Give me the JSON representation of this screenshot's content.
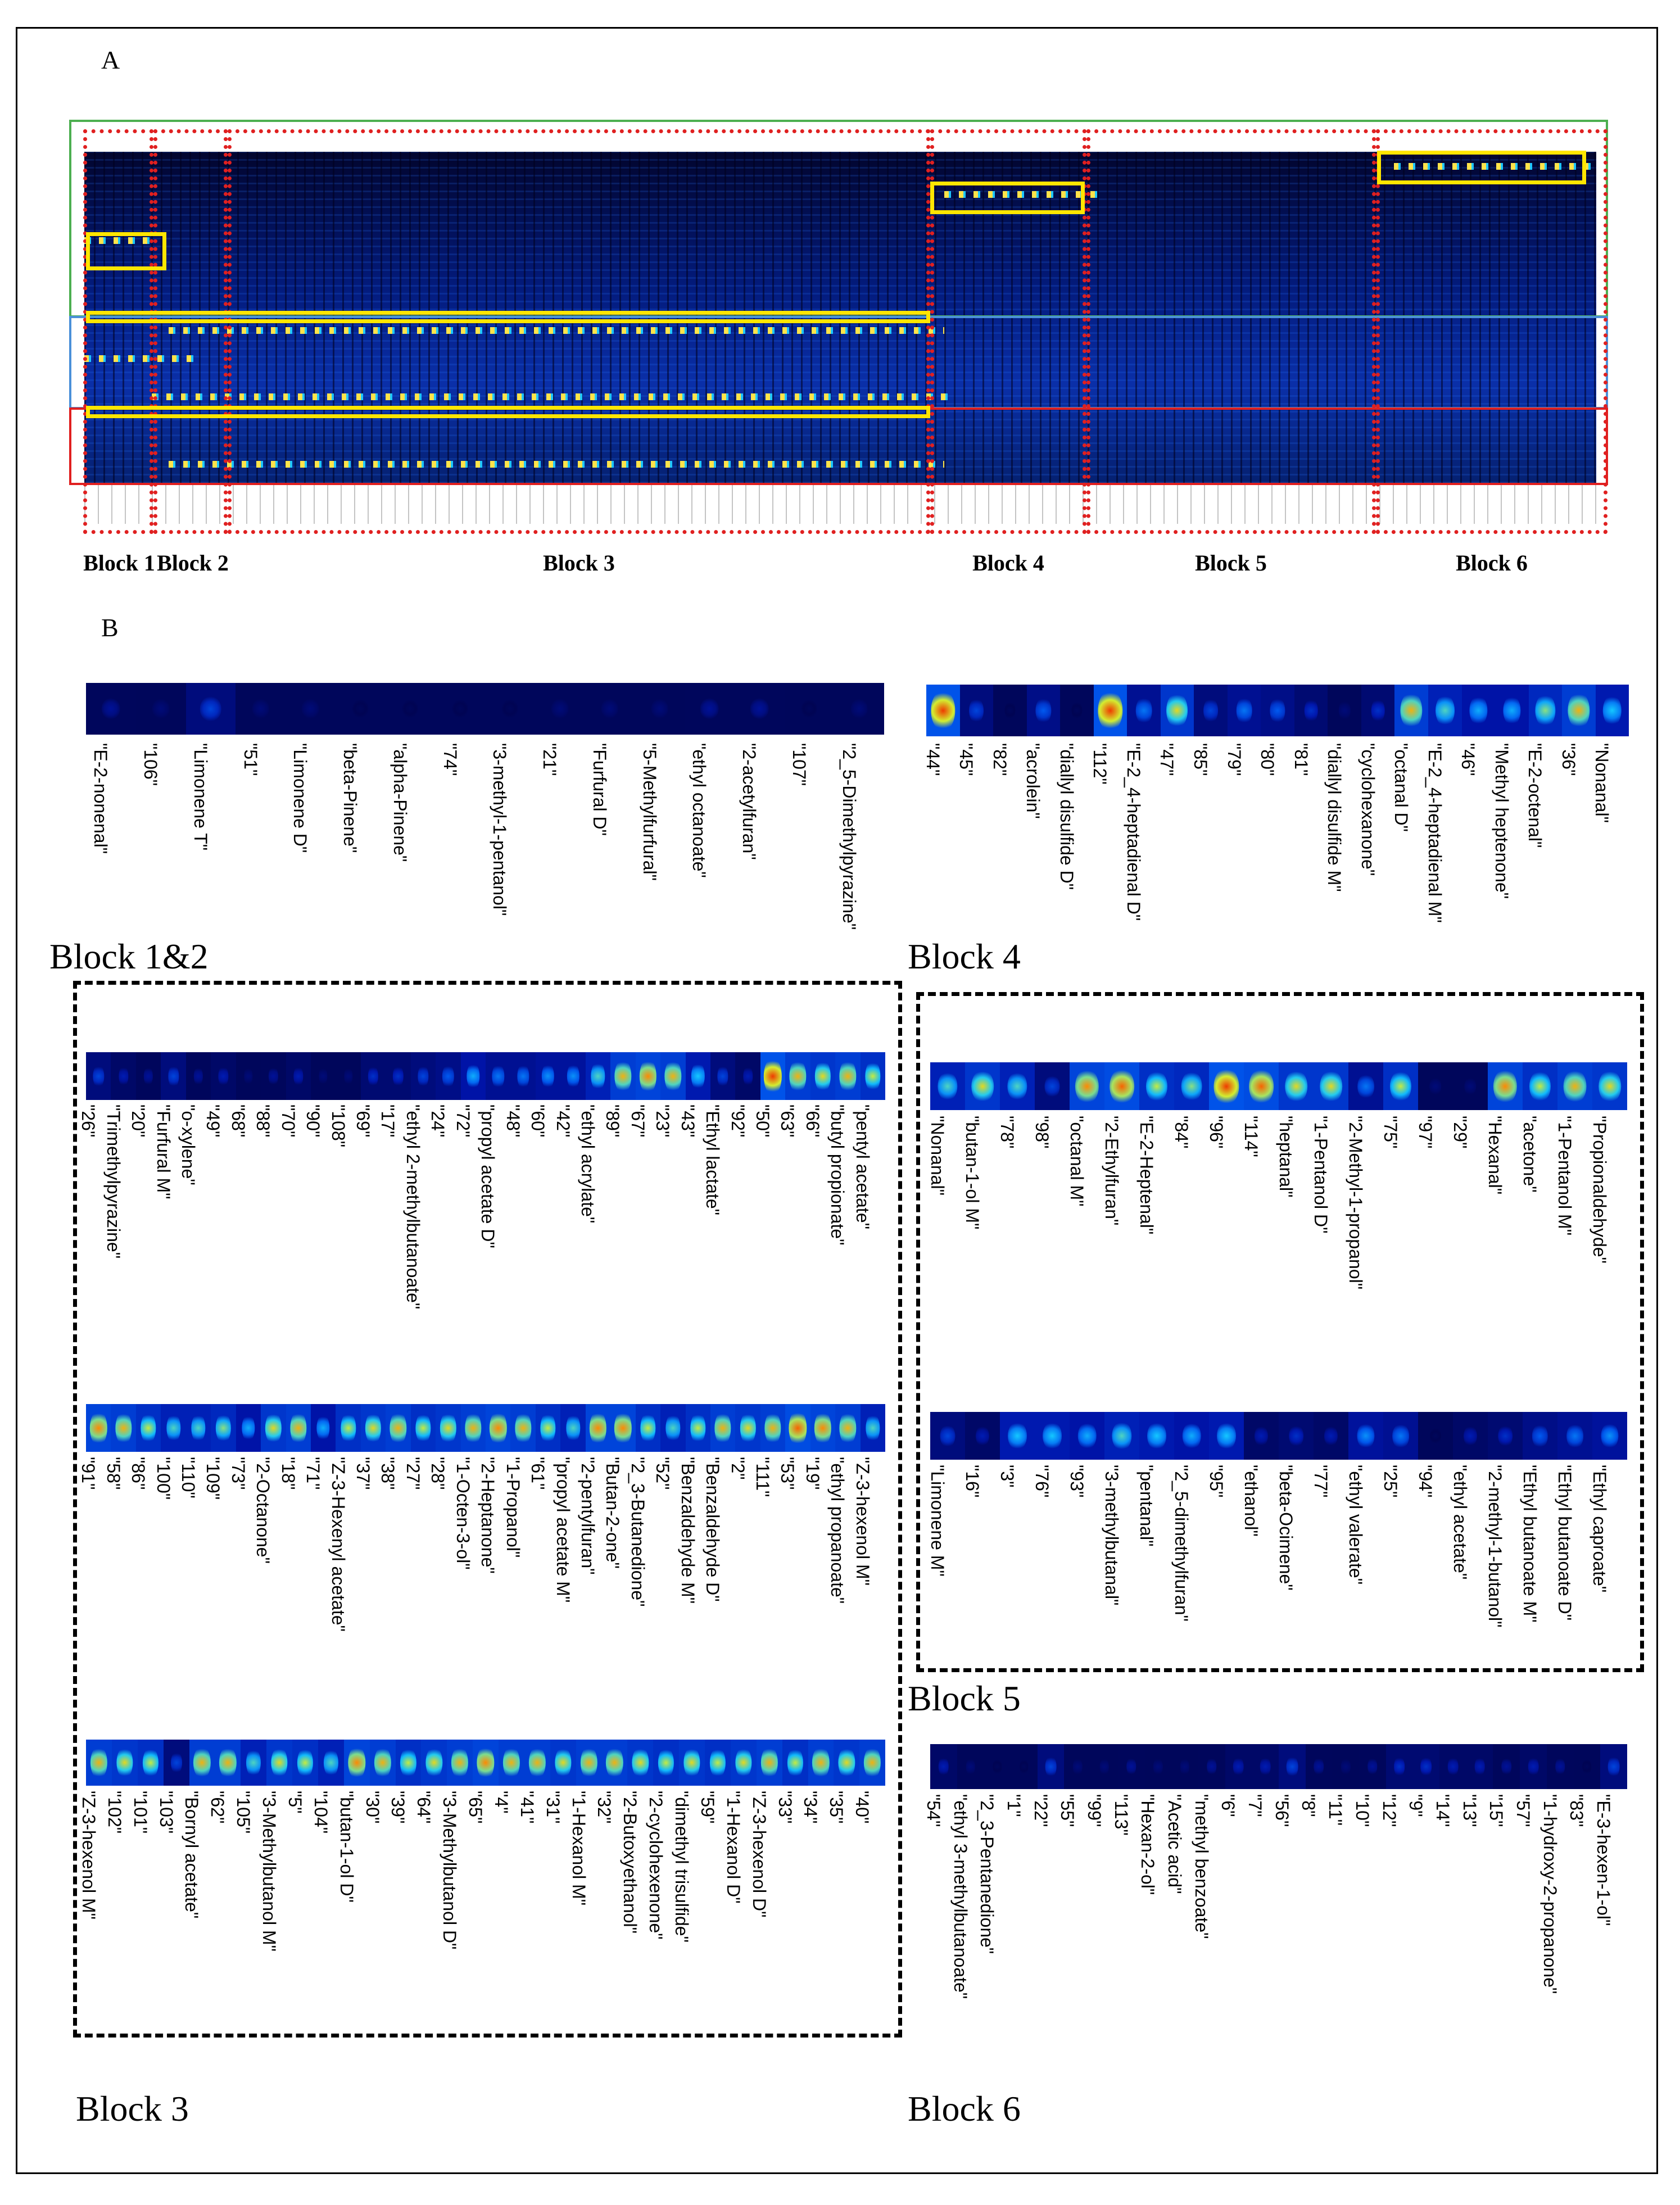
{
  "panel_a": {
    "letter": "A",
    "blocks": [
      "Block 1",
      "Block 2",
      "Block 3",
      "Block 4",
      "Block 5",
      "Block 6"
    ]
  },
  "panel_b": {
    "letter": "B",
    "titles": {
      "b12": "Block 1&2",
      "b4": "Block 4",
      "b3": "Block 3",
      "b5": "Block 5",
      "b6": "Block 6"
    },
    "strips": {
      "b12": {
        "labels": [
          "\"E-2-nonenal\"",
          "\"106\"",
          "\"Limonene T\"",
          "\"51\"",
          "\"Limonene D\"",
          "\"beta-Pinene\"",
          "\"alpha-Pinene\"",
          "\"74\"",
          "\"3-methyl-1-pentanol\"",
          "\"21\"",
          "\"Furfural D\"",
          "\"5-Methylfurfural\"",
          "\"ethyl octanoate\"",
          "\"2-acetylfuran\"",
          "\"107\"",
          "\"2_5-Dimethylpyrazine\""
        ],
        "intensity": [
          0.15,
          0.1,
          0.3,
          0.1,
          0.1,
          0.05,
          0.05,
          0.05,
          0.05,
          0.1,
          0.1,
          0.1,
          0.15,
          0.15,
          0.05,
          0.1
        ]
      },
      "b4": {
        "labels": [
          "\"44\"",
          "\"45\"",
          "\"82\"",
          "\"acrolein\"",
          "\"diallyl disulfide D\"",
          "\"112\"",
          "\"E-2_4-heptadienal D\"",
          "\"47\"",
          "\"85\"",
          "\"79\"",
          "\"80\"",
          "\"81\"",
          "\"diallyl disulfide M\"",
          "\"cyclohexanone\"",
          "\"octanal D\"",
          "\"E-2_4-heptadienal M\"",
          "\"46\"",
          "\"Methyl heptenone\"",
          "\"E-2-octenal\"",
          "\"36\"",
          "\"Nonanal\""
        ],
        "intensity": [
          0.95,
          0.3,
          0.05,
          0.35,
          0.05,
          0.95,
          0.4,
          0.75,
          0.3,
          0.4,
          0.35,
          0.25,
          0.1,
          0.25,
          0.8,
          0.6,
          0.5,
          0.5,
          0.65,
          0.8,
          0.55
        ]
      },
      "b3a": {
        "labels": [
          "\"26\"",
          "\"Trimethylpyrazine\"",
          "\"20\"",
          "\"Furfural M\"",
          "\"o-xylene\"",
          "\"49\"",
          "\"68\"",
          "\"88\"",
          "\"70\"",
          "\"90\"",
          "\"108\"",
          "\"69\"",
          "\"17\"",
          "\"ethyl 2-methylbutanoate\"",
          "\"24\"",
          "\"72\"",
          "\"propyl acetate D\"",
          "\"48\"",
          "\"60\"",
          "\"42\"",
          "\"ethyl acrylate\"",
          "\"89\"",
          "\"67\"",
          "\"23\"",
          "\"43\"",
          "\"Ethyl lactate\"",
          "\"92\"",
          "\"50\"",
          "\"63\"",
          "\"66\"",
          "\"butyl propionate\"",
          "\"pentyl acetate\""
        ],
        "intensity": [
          0.3,
          0.2,
          0.15,
          0.3,
          0.15,
          0.2,
          0.1,
          0.15,
          0.2,
          0.1,
          0.1,
          0.25,
          0.25,
          0.3,
          0.35,
          0.5,
          0.4,
          0.4,
          0.45,
          0.45,
          0.6,
          0.8,
          0.85,
          0.8,
          0.55,
          0.3,
          0.2,
          0.95,
          0.8,
          0.75,
          0.8,
          0.7
        ]
      },
      "b3b": {
        "labels": [
          "\"91\"",
          "\"58\"",
          "\"86\"",
          "\"100\"",
          "\"110\"",
          "\"109\"",
          "\"73\"",
          "\"2-Octanone\"",
          "\"18\"",
          "\"71\"",
          "\"Z-3-Hexenyl acetate\"",
          "\"37\"",
          "\"38\"",
          "\"27\"",
          "\"28\"",
          "\"1-Octen-3-ol\"",
          "\"2-Heptanone\"",
          "\"1-Propanol\"",
          "\"61\"",
          "\"propyl acetate M\"",
          "\"2-pentylfuran\"",
          "\"Butan-2-one\"",
          "\"2_3-Butanedione\"",
          "\"52\"",
          "\"Benzaldehyde M\"",
          "\"Benzaldehyde D\"",
          "\"2\"",
          "\"111\"",
          "\"53\"",
          "\"19\"",
          "\"ethyl propanoate\"",
          "\"Z-3-hexenol M\""
        ],
        "intensity": [
          0.85,
          0.8,
          0.7,
          0.6,
          0.6,
          0.65,
          0.5,
          0.75,
          0.8,
          0.5,
          0.7,
          0.75,
          0.8,
          0.7,
          0.75,
          0.8,
          0.85,
          0.8,
          0.7,
          0.6,
          0.85,
          0.85,
          0.7,
          0.6,
          0.7,
          0.8,
          0.75,
          0.8,
          0.9,
          0.85,
          0.8,
          0.6
        ]
      },
      "b3c": {
        "labels": [
          "\"Z-3-hexenol M\"",
          "\"102\"",
          "\"101\"",
          "\"103\"",
          "\"Bornyl acetate\"",
          "\"62\"",
          "\"105\"",
          "\"3-Methylbutanol M\"",
          "\"5\"",
          "\"104\"",
          "\"butan-1-ol D\"",
          "\"30\"",
          "\"39\"",
          "\"64\"",
          "\"3-Methylbutanol D\"",
          "\"65\"",
          "\"4\"",
          "\"41\"",
          "\"31\"",
          "\"1-Hexanol M\"",
          "\"32\"",
          "\"2-Butoxyethanol\"",
          "\"2-cyclohexenone\"",
          "\"dimethyl trisulfide\"",
          "\"59\"",
          "\"1-Hexanol D\"",
          "\"Z-3-hexenol D\"",
          "\"33\"",
          "\"34\"",
          "\"35\"",
          "\"40\""
        ],
        "intensity": [
          0.8,
          0.75,
          0.7,
          0.3,
          0.8,
          0.8,
          0.6,
          0.75,
          0.7,
          0.6,
          0.85,
          0.8,
          0.7,
          0.75,
          0.8,
          0.85,
          0.8,
          0.8,
          0.75,
          0.8,
          0.8,
          0.75,
          0.7,
          0.75,
          0.7,
          0.75,
          0.8,
          0.7,
          0.8,
          0.75,
          0.8
        ]
      },
      "b5a": {
        "labels": [
          "\"Nonanal\"",
          "\"butan-1-ol M\"",
          "\"78\"",
          "\"98\"",
          "\"octanal M\"",
          "\"2-Ethylfuran\"",
          "\"E-2-Heptenal\"",
          "\"84\"",
          "\"96\"",
          "\"114\"",
          "\"heptanal\"",
          "\"1-Pentanol D\"",
          "\"2-Methyl-1-propanol\"",
          "\"75\"",
          "\"97\"",
          "\"29\"",
          "\"Hexanal\"",
          "\"acetone\"",
          "\"1-Pentanol M\"",
          "\"Propionaldehyde\""
        ],
        "intensity": [
          0.6,
          0.75,
          0.6,
          0.3,
          0.85,
          0.9,
          0.7,
          0.65,
          0.95,
          0.9,
          0.75,
          0.75,
          0.4,
          0.7,
          0.1,
          0.1,
          0.85,
          0.7,
          0.8,
          0.75
        ]
      },
      "b5b": {
        "labels": [
          "\"Limonene M\"",
          "\"16\"",
          "\"3\"",
          "\"76\"",
          "\"93\"",
          "\"3-methylbutanal\"",
          "\"pentanal\"",
          "\"2_5-dimethylfuran\"",
          "\"95\"",
          "\"ethanol\"",
          "\"beta-Ocimene\"",
          "\"77\"",
          "\"ethyl valerate\"",
          "\"25\"",
          "\"94\"",
          "\"ethyl acetate\"",
          "\"2-methyl-1-butanol\"",
          "\"Ethyl butanoate M\"",
          "\"Ethyl butanoate D\"",
          "\"Ethyl caproate\""
        ],
        "intensity": [
          0.3,
          0.2,
          0.55,
          0.55,
          0.5,
          0.6,
          0.55,
          0.5,
          0.55,
          0.2,
          0.25,
          0.2,
          0.45,
          0.4,
          0.05,
          0.2,
          0.25,
          0.35,
          0.4,
          0.45
        ]
      },
      "b6": {
        "labels": [
          "\"54\"",
          "\"ethyl 3-methylbutanoate\"",
          "\"2_3-Pentanedione\"",
          "\"1\"",
          "\"22\"",
          "\"55\"",
          "\"99\"",
          "\"113\"",
          "\"Hexan-2-ol\"",
          "\"Acetic acid\"",
          "\"methyl benzoate\"",
          "\"6\"",
          "\"7\"",
          "\"56\"",
          "\"8\"",
          "\"11\"",
          "\"10\"",
          "\"12\"",
          "\"9\"",
          "\"14\"",
          "\"13\"",
          "\"15\"",
          "\"57\"",
          "\"1-hydroxy-2-propanone\"",
          "\"83\"",
          "\"E-3-hexen-1-ol\""
        ],
        "intensity": [
          0.2,
          0.1,
          0.05,
          0.05,
          0.3,
          0.1,
          0.1,
          0.15,
          0.1,
          0.1,
          0.15,
          0.2,
          0.2,
          0.3,
          0.15,
          0.1,
          0.15,
          0.25,
          0.25,
          0.2,
          0.2,
          0.15,
          0.2,
          0.15,
          0.05,
          0.3
        ]
      }
    }
  }
}
